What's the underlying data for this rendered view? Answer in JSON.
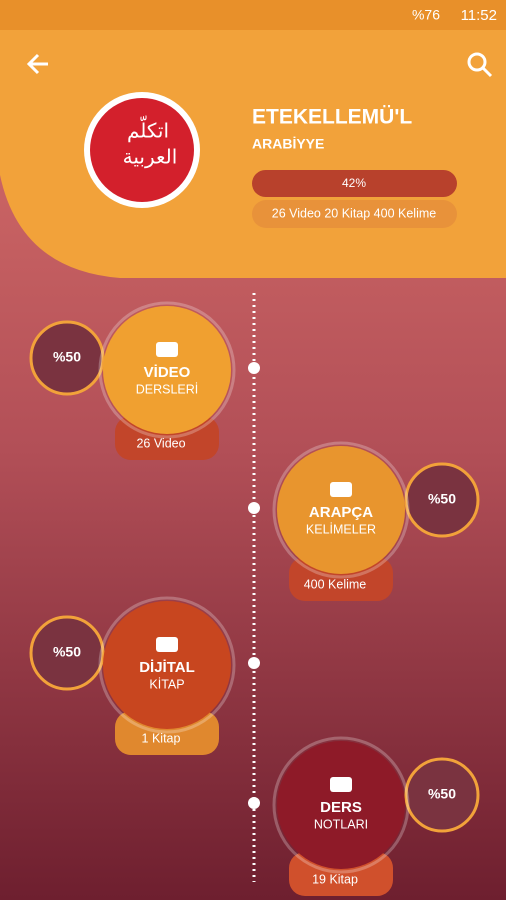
{
  "status_bar": {
    "battery": "%76",
    "time": "11:52"
  },
  "header": {
    "title": "ETEKELLEMÜ'L",
    "subtitle": "ARABİYYE",
    "logo_text": [
      "اتكلّم",
      "العربية"
    ],
    "progress_label": "42%",
    "stats": "26 Video 20 Kitap 400 Kelime"
  },
  "items": [
    {
      "percent": "%50",
      "title": [
        "VİDEO",
        "DERSLERİ"
      ],
      "caption": "26 Video"
    },
    {
      "percent": "%50",
      "title": [
        "ARAPÇA",
        "KELİMELER"
      ],
      "caption": "400 Kelime"
    },
    {
      "percent": "%50",
      "title": [
        "DİJİTAL",
        "KİTAP"
      ],
      "caption": "1 Kitap"
    },
    {
      "percent": "%50",
      "title": [
        "DERS",
        "NOTLARI"
      ],
      "caption": "19 Kitap"
    }
  ]
}
